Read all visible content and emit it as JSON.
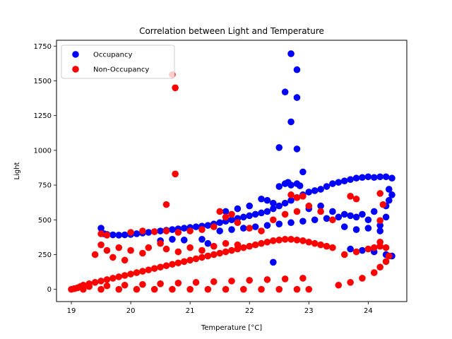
{
  "chart_data": {
    "type": "scatter",
    "title": "Correlation between Light and Temperature",
    "xlabel": "Temperature [°C]",
    "ylabel": "Light",
    "xlim": [
      18.75,
      24.65
    ],
    "ylim": [
      -88,
      1792
    ],
    "xticks": [
      19,
      20,
      21,
      22,
      23,
      24
    ],
    "yticks": [
      0,
      250,
      500,
      750,
      1000,
      1250,
      1500,
      1750
    ],
    "grid": false,
    "legend_position": "top-left",
    "series": [
      {
        "name": "Occupancy",
        "color": "#0000ff",
        "points": [
          [
            19.5,
            440
          ],
          [
            19.55,
            400
          ],
          [
            19.6,
            395
          ],
          [
            19.7,
            392
          ],
          [
            19.8,
            390
          ],
          [
            19.9,
            392
          ],
          [
            20.0,
            395
          ],
          [
            20.1,
            400
          ],
          [
            20.2,
            405
          ],
          [
            20.3,
            410
          ],
          [
            20.4,
            415
          ],
          [
            20.5,
            420
          ],
          [
            20.6,
            425
          ],
          [
            20.7,
            430
          ],
          [
            20.8,
            435
          ],
          [
            20.9,
            440
          ],
          [
            21.0,
            445
          ],
          [
            21.1,
            450
          ],
          [
            21.2,
            455
          ],
          [
            21.3,
            460
          ],
          [
            21.4,
            470
          ],
          [
            21.5,
            480
          ],
          [
            21.6,
            490
          ],
          [
            21.7,
            500
          ],
          [
            21.8,
            510
          ],
          [
            21.9,
            520
          ],
          [
            22.0,
            530
          ],
          [
            22.1,
            540
          ],
          [
            22.2,
            550
          ],
          [
            22.3,
            560
          ],
          [
            22.4,
            580
          ],
          [
            22.5,
            600
          ],
          [
            22.6,
            620
          ],
          [
            22.7,
            640
          ],
          [
            22.8,
            660
          ],
          [
            22.9,
            680
          ],
          [
            23.0,
            700
          ],
          [
            23.1,
            710
          ],
          [
            23.2,
            720
          ],
          [
            23.3,
            740
          ],
          [
            23.4,
            760
          ],
          [
            23.5,
            770
          ],
          [
            23.6,
            780
          ],
          [
            23.7,
            790
          ],
          [
            23.8,
            800
          ],
          [
            23.9,
            805
          ],
          [
            24.0,
            810
          ],
          [
            24.1,
            805
          ],
          [
            24.2,
            810
          ],
          [
            24.3,
            810
          ],
          [
            24.4,
            800
          ],
          [
            21.5,
            420
          ],
          [
            21.7,
            430
          ],
          [
            21.9,
            440
          ],
          [
            22.1,
            450
          ],
          [
            22.3,
            460
          ],
          [
            22.5,
            470
          ],
          [
            22.7,
            480
          ],
          [
            22.9,
            490
          ],
          [
            23.1,
            500
          ],
          [
            23.3,
            510
          ],
          [
            23.5,
            520
          ],
          [
            23.7,
            530
          ],
          [
            23.9,
            540
          ],
          [
            24.1,
            560
          ],
          [
            24.3,
            600
          ],
          [
            24.35,
            640
          ],
          [
            24.4,
            680
          ],
          [
            24.35,
            720
          ],
          [
            21.2,
            360
          ],
          [
            21.3,
            330
          ],
          [
            20.5,
            350
          ],
          [
            20.7,
            360
          ],
          [
            20.9,
            355
          ],
          [
            22.4,
            195
          ],
          [
            22.5,
            740
          ],
          [
            22.6,
            760
          ],
          [
            22.65,
            770
          ],
          [
            22.7,
            750
          ],
          [
            22.8,
            760
          ],
          [
            22.85,
            745
          ],
          [
            23.0,
            580
          ],
          [
            23.2,
            600
          ],
          [
            23.4,
            560
          ],
          [
            23.6,
            540
          ],
          [
            23.8,
            520
          ],
          [
            24.0,
            500
          ],
          [
            22.2,
            650
          ],
          [
            22.3,
            640
          ],
          [
            22.4,
            620
          ],
          [
            22.0,
            600
          ],
          [
            21.8,
            580
          ],
          [
            21.6,
            560
          ],
          [
            23.6,
            450
          ],
          [
            23.8,
            430
          ],
          [
            24.0,
            440
          ],
          [
            24.2,
            420
          ],
          [
            24.2,
            460
          ],
          [
            24.3,
            520
          ],
          [
            23.7,
            290
          ],
          [
            23.9,
            280
          ],
          [
            24.1,
            270
          ],
          [
            24.3,
            250
          ],
          [
            24.4,
            240
          ],
          [
            22.9,
            845
          ],
          [
            22.8,
            1010
          ],
          [
            22.5,
            1020
          ],
          [
            22.7,
            1205
          ],
          [
            22.6,
            1420
          ],
          [
            22.8,
            1380
          ],
          [
            22.8,
            1580
          ],
          [
            22.7,
            1695
          ]
        ]
      },
      {
        "name": "Non-Occupancy",
        "color": "#ff0000",
        "points": [
          [
            19.0,
            0
          ],
          [
            19.05,
            5
          ],
          [
            19.1,
            10
          ],
          [
            19.15,
            20
          ],
          [
            19.2,
            30
          ],
          [
            19.3,
            40
          ],
          [
            19.4,
            50
          ],
          [
            19.5,
            60
          ],
          [
            19.6,
            70
          ],
          [
            19.7,
            80
          ],
          [
            19.8,
            90
          ],
          [
            19.9,
            100
          ],
          [
            20.0,
            110
          ],
          [
            20.1,
            120
          ],
          [
            20.2,
            130
          ],
          [
            20.3,
            140
          ],
          [
            20.4,
            150
          ],
          [
            20.5,
            160
          ],
          [
            20.6,
            170
          ],
          [
            20.7,
            180
          ],
          [
            20.8,
            190
          ],
          [
            20.9,
            200
          ],
          [
            21.0,
            210
          ],
          [
            21.1,
            220
          ],
          [
            21.2,
            230
          ],
          [
            21.3,
            240
          ],
          [
            21.4,
            250
          ],
          [
            21.5,
            260
          ],
          [
            21.6,
            270
          ],
          [
            21.7,
            280
          ],
          [
            21.8,
            290
          ],
          [
            21.9,
            300
          ],
          [
            22.0,
            310
          ],
          [
            22.1,
            320
          ],
          [
            22.2,
            330
          ],
          [
            22.3,
            340
          ],
          [
            22.4,
            350
          ],
          [
            22.5,
            355
          ],
          [
            22.6,
            360
          ],
          [
            22.7,
            360
          ],
          [
            22.8,
            355
          ],
          [
            22.9,
            350
          ],
          [
            23.0,
            340
          ],
          [
            23.1,
            330
          ],
          [
            23.2,
            320
          ],
          [
            23.3,
            310
          ],
          [
            23.4,
            300
          ],
          [
            19.2,
            0
          ],
          [
            19.5,
            0
          ],
          [
            19.8,
            0
          ],
          [
            20.1,
            0
          ],
          [
            20.4,
            0
          ],
          [
            20.7,
            0
          ],
          [
            21.0,
            0
          ],
          [
            21.3,
            0
          ],
          [
            21.6,
            0
          ],
          [
            21.9,
            0
          ],
          [
            22.2,
            0
          ],
          [
            22.5,
            0
          ],
          [
            22.8,
            0
          ],
          [
            23.0,
            0
          ],
          [
            19.3,
            20
          ],
          [
            19.6,
            25
          ],
          [
            19.9,
            30
          ],
          [
            20.2,
            35
          ],
          [
            20.5,
            40
          ],
          [
            20.8,
            45
          ],
          [
            21.1,
            50
          ],
          [
            21.4,
            55
          ],
          [
            21.7,
            60
          ],
          [
            22.0,
            65
          ],
          [
            22.3,
            70
          ],
          [
            22.6,
            75
          ],
          [
            22.9,
            80
          ],
          [
            23.5,
            30
          ],
          [
            23.7,
            50
          ],
          [
            23.9,
            80
          ],
          [
            24.1,
            120
          ],
          [
            24.2,
            160
          ],
          [
            24.3,
            200
          ],
          [
            24.35,
            240
          ],
          [
            23.6,
            250
          ],
          [
            23.8,
            270
          ],
          [
            24.0,
            290
          ],
          [
            24.1,
            300
          ],
          [
            24.2,
            310
          ],
          [
            24.3,
            300
          ],
          [
            19.4,
            250
          ],
          [
            19.6,
            280
          ],
          [
            19.8,
            300
          ],
          [
            19.5,
            320
          ],
          [
            19.7,
            230
          ],
          [
            19.9,
            210
          ],
          [
            20.0,
            280
          ],
          [
            20.2,
            260
          ],
          [
            20.3,
            300
          ],
          [
            20.5,
            330
          ],
          [
            20.6,
            290
          ],
          [
            20.8,
            270
          ],
          [
            21.0,
            300
          ],
          [
            21.2,
            280
          ],
          [
            21.4,
            310
          ],
          [
            21.6,
            330
          ],
          [
            21.8,
            320
          ],
          [
            20.0,
            410
          ],
          [
            20.2,
            420
          ],
          [
            20.4,
            415
          ],
          [
            20.6,
            420
          ],
          [
            20.8,
            410
          ],
          [
            21.0,
            420
          ],
          [
            21.2,
            430
          ],
          [
            21.4,
            450
          ],
          [
            21.6,
            520
          ],
          [
            21.5,
            560
          ],
          [
            21.7,
            540
          ],
          [
            21.8,
            480
          ],
          [
            22.0,
            440
          ],
          [
            22.2,
            420
          ],
          [
            22.4,
            500
          ],
          [
            22.6,
            540
          ],
          [
            22.8,
            560
          ],
          [
            23.0,
            600
          ],
          [
            23.2,
            560
          ],
          [
            23.4,
            500
          ],
          [
            22.7,
            680
          ],
          [
            22.8,
            660
          ],
          [
            22.9,
            670
          ],
          [
            23.7,
            670
          ],
          [
            23.8,
            650
          ],
          [
            24.2,
            690
          ],
          [
            24.25,
            610
          ],
          [
            24.2,
            495
          ],
          [
            24.2,
            340
          ],
          [
            19.5,
            400
          ],
          [
            19.6,
            390
          ],
          [
            20.6,
            610
          ],
          [
            20.7,
            1545
          ],
          [
            20.75,
            1450
          ],
          [
            20.75,
            830
          ]
        ]
      }
    ]
  }
}
